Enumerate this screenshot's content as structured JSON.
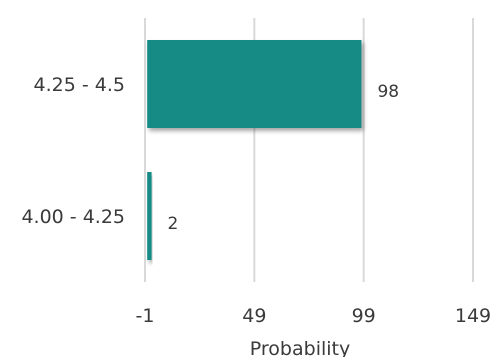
{
  "chart_data": {
    "type": "bar",
    "orientation": "horizontal",
    "categories": [
      "4.25 - 4.5",
      "4.00 - 4.25"
    ],
    "values": [
      98,
      2
    ],
    "data_labels": [
      "98",
      "2"
    ],
    "xlabel": "Probability",
    "ylabel": "",
    "x_ticks": [
      -1,
      49,
      99,
      149
    ],
    "x_tick_labels": [
      "-1",
      "49",
      "99",
      "149"
    ],
    "xlim": [
      -1,
      149
    ],
    "grid": "vertical",
    "bar_color": "#168a84",
    "grid_color": "#d9d9d9"
  }
}
